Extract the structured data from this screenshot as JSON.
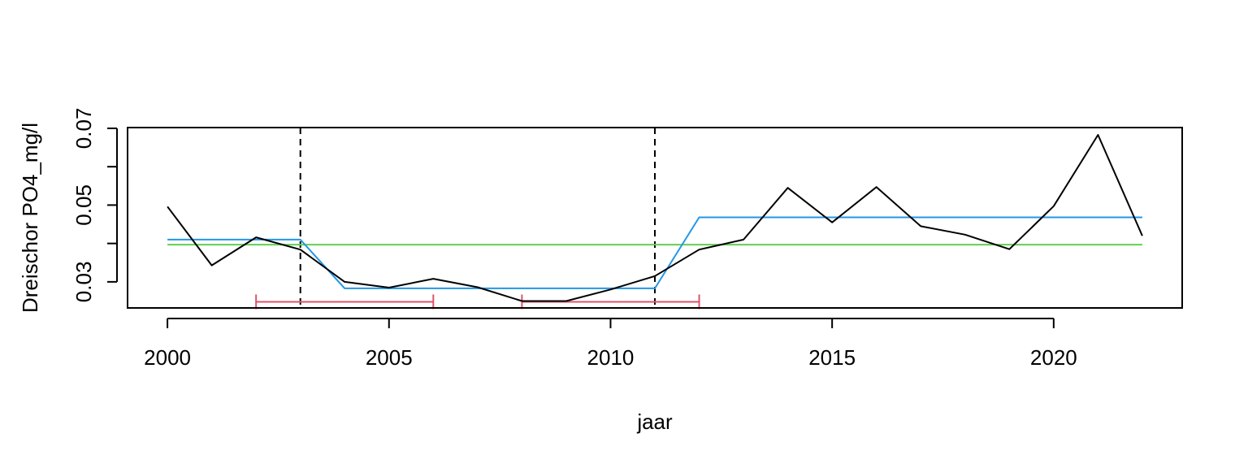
{
  "chart_data": {
    "type": "line",
    "title": "",
    "xlabel": "jaar",
    "ylabel": "Dreischor PO4_mg/l",
    "xlim": [
      1999.1,
      2022.9
    ],
    "ylim": [
      0.0232,
      0.0702
    ],
    "x_ticks": [
      {
        "value": 2000,
        "label": "2000"
      },
      {
        "value": 2005,
        "label": "2005"
      },
      {
        "value": 2010,
        "label": "2010"
      },
      {
        "value": 2015,
        "label": "2015"
      },
      {
        "value": 2020,
        "label": "2020"
      }
    ],
    "y_ticks": [
      {
        "value": 0.03,
        "label": "0.03"
      },
      {
        "value": 0.04,
        "label": ""
      },
      {
        "value": 0.05,
        "label": "0.05"
      },
      {
        "value": 0.06,
        "label": ""
      },
      {
        "value": 0.07,
        "label": "0.07"
      }
    ],
    "grid": false,
    "legend": "none",
    "series": [
      {
        "color": "#000000",
        "x": [
          2000,
          2001,
          2002,
          2003,
          2004,
          2005,
          2006,
          2007,
          2008,
          2009,
          2010,
          2011,
          2012,
          2013,
          2014,
          2015,
          2016,
          2017,
          2018,
          2019,
          2020,
          2021,
          2022
        ],
        "values": [
          0.0496,
          0.0343,
          0.0416,
          0.0384,
          0.03,
          0.0285,
          0.0308,
          0.0286,
          0.025,
          0.025,
          0.028,
          0.0315,
          0.0384,
          0.041,
          0.0545,
          0.0455,
          0.0547,
          0.0445,
          0.0423,
          0.0385,
          0.0497,
          0.0683,
          0.042
        ]
      },
      {
        "color": "#2297E6",
        "x": [
          2000,
          2003,
          2004,
          2011,
          2012,
          2022
        ],
        "values": [
          0.041,
          0.041,
          0.0283,
          0.0283,
          0.0468,
          0.0468
        ]
      },
      {
        "color": "#61D04F",
        "x": [
          2000,
          2022
        ],
        "values": [
          0.0397,
          0.0397
        ]
      }
    ],
    "vlines": {
      "color": "#000000",
      "style": "dashed",
      "x": [
        2003,
        2011
      ]
    },
    "intervals": [
      {
        "color": "#DF536B",
        "from": 2002,
        "to": 2006,
        "y": 0.0248
      },
      {
        "color": "#DF536B",
        "from": 2008,
        "to": 2012,
        "y": 0.0248
      }
    ]
  }
}
